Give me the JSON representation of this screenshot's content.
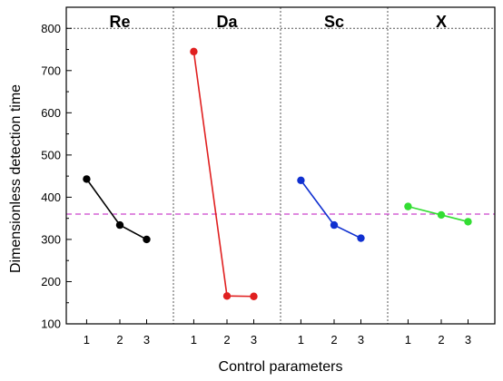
{
  "chart_data": {
    "type": "line",
    "xlabel": "Control parameters",
    "ylabel": "Dimensionless detection time",
    "ylim": [
      100,
      850
    ],
    "yticks": [
      100,
      200,
      300,
      400,
      500,
      600,
      700,
      800
    ],
    "grid": "dotted horizontal line at 800 and dotted vertical panel separators",
    "reference_line": {
      "value": 360,
      "color": "#cc44cc",
      "style": "dashed"
    },
    "panels": [
      {
        "name": "Re",
        "x": [
          1,
          2,
          3
        ],
        "values": [
          443,
          334,
          300
        ],
        "color": "#000000"
      },
      {
        "name": "Da",
        "x": [
          1,
          2,
          3
        ],
        "values": [
          745,
          166,
          165
        ],
        "color": "#e02020"
      },
      {
        "name": "Sc",
        "x": [
          1,
          2,
          3
        ],
        "values": [
          440,
          334,
          303
        ],
        "color": "#1030d0"
      },
      {
        "name": "X",
        "x": [
          1,
          2,
          3
        ],
        "values": [
          378,
          358,
          342
        ],
        "color": "#33dd33"
      }
    ]
  }
}
